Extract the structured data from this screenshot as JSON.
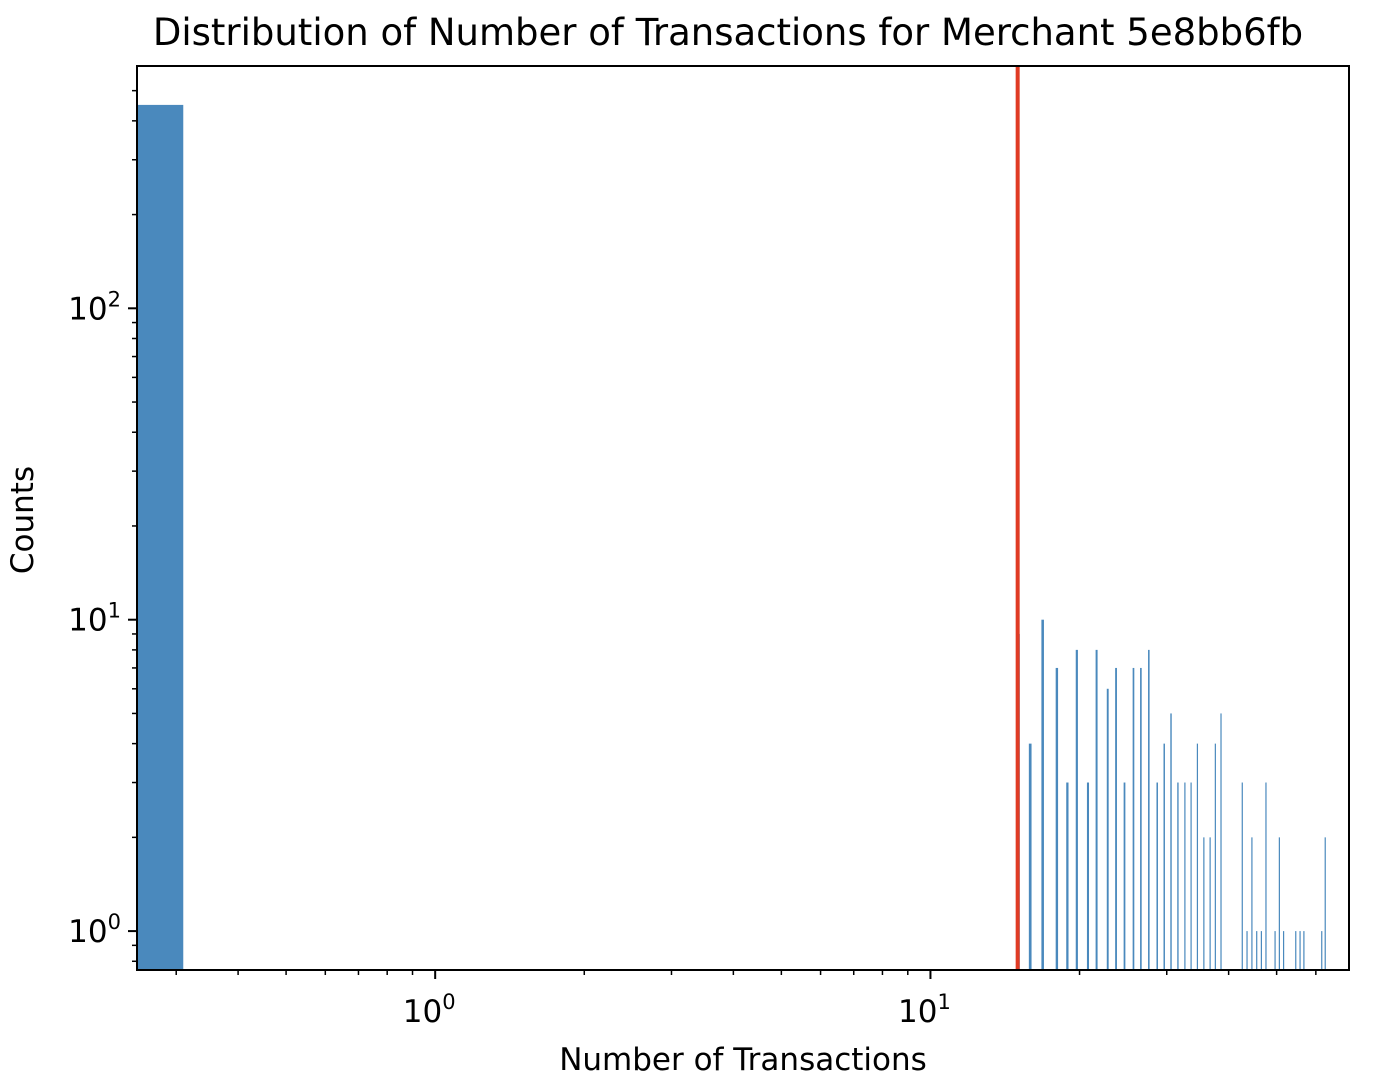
{
  "chart_data": {
    "type": "bar",
    "title": "Distribution of Number of Transactions for Merchant 5e8bb6fb",
    "xlabel": "Number of Transactions",
    "ylabel": "Counts",
    "xscale": "log",
    "yscale": "log",
    "xlim": [
      0.25,
      70
    ],
    "ylim": [
      0.75,
      600
    ],
    "grid": false,
    "bar_color": "#4a89bd",
    "x_ticks": [
      {
        "value": 1,
        "base": "10",
        "exp": "0"
      },
      {
        "value": 10,
        "base": "10",
        "exp": "1"
      }
    ],
    "y_ticks": [
      {
        "value": 1,
        "base": "10",
        "exp": "0"
      },
      {
        "value": 10,
        "base": "10",
        "exp": "1"
      },
      {
        "value": 100,
        "base": "10",
        "exp": "2"
      }
    ],
    "bins": [
      {
        "x0": 0.25,
        "x1": 0.31,
        "count": 450
      },
      {
        "x0": 15.05,
        "x1": 15.15,
        "count": 9
      },
      {
        "x0": 15.8,
        "x1": 16.0,
        "count": 4
      },
      {
        "x0": 16.75,
        "x1": 16.95,
        "count": 10
      },
      {
        "x0": 17.9,
        "x1": 18.1,
        "count": 7
      },
      {
        "x0": 18.8,
        "x1": 19.0,
        "count": 3
      },
      {
        "x0": 19.65,
        "x1": 19.85,
        "count": 8
      },
      {
        "x0": 20.7,
        "x1": 20.9,
        "count": 3
      },
      {
        "x0": 21.55,
        "x1": 21.75,
        "count": 8
      },
      {
        "x0": 22.7,
        "x1": 22.9,
        "count": 6
      },
      {
        "x0": 23.6,
        "x1": 23.8,
        "count": 7
      },
      {
        "x0": 24.55,
        "x1": 24.75,
        "count": 3
      },
      {
        "x0": 25.6,
        "x1": 25.8,
        "count": 7
      },
      {
        "x0": 26.5,
        "x1": 26.7,
        "count": 7
      },
      {
        "x0": 27.5,
        "x1": 27.7,
        "count": 8
      },
      {
        "x0": 28.6,
        "x1": 28.8,
        "count": 3
      },
      {
        "x0": 29.55,
        "x1": 29.75,
        "count": 4
      },
      {
        "x0": 30.5,
        "x1": 30.7,
        "count": 5
      },
      {
        "x0": 31.5,
        "x1": 31.7,
        "count": 3
      },
      {
        "x0": 32.55,
        "x1": 32.7,
        "count": 3
      },
      {
        "x0": 33.5,
        "x1": 33.65,
        "count": 3
      },
      {
        "x0": 34.5,
        "x1": 34.65,
        "count": 4
      },
      {
        "x0": 35.55,
        "x1": 35.7,
        "count": 2
      },
      {
        "x0": 36.6,
        "x1": 36.75,
        "count": 2
      },
      {
        "x0": 37.5,
        "x1": 37.65,
        "count": 4
      },
      {
        "x0": 38.5,
        "x1": 38.65,
        "count": 5
      },
      {
        "x0": 42.5,
        "x1": 42.65,
        "count": 3
      },
      {
        "x0": 43.45,
        "x1": 43.6,
        "count": 1
      },
      {
        "x0": 44.45,
        "x1": 44.6,
        "count": 2
      },
      {
        "x0": 45.45,
        "x1": 45.6,
        "count": 1
      },
      {
        "x0": 46.45,
        "x1": 46.6,
        "count": 1
      },
      {
        "x0": 47.45,
        "x1": 47.6,
        "count": 3
      },
      {
        "x0": 49.5,
        "x1": 49.65,
        "count": 1
      },
      {
        "x0": 50.5,
        "x1": 50.65,
        "count": 2
      },
      {
        "x0": 51.5,
        "x1": 51.65,
        "count": 1
      },
      {
        "x0": 54.5,
        "x1": 54.65,
        "count": 1
      },
      {
        "x0": 55.6,
        "x1": 55.75,
        "count": 1
      },
      {
        "x0": 56.6,
        "x1": 56.75,
        "count": 1
      },
      {
        "x0": 61.5,
        "x1": 61.65,
        "count": 1
      },
      {
        "x0": 62.5,
        "x1": 62.65,
        "count": 2
      }
    ],
    "vline": {
      "x": 15.0,
      "color": "#e03b24"
    }
  }
}
